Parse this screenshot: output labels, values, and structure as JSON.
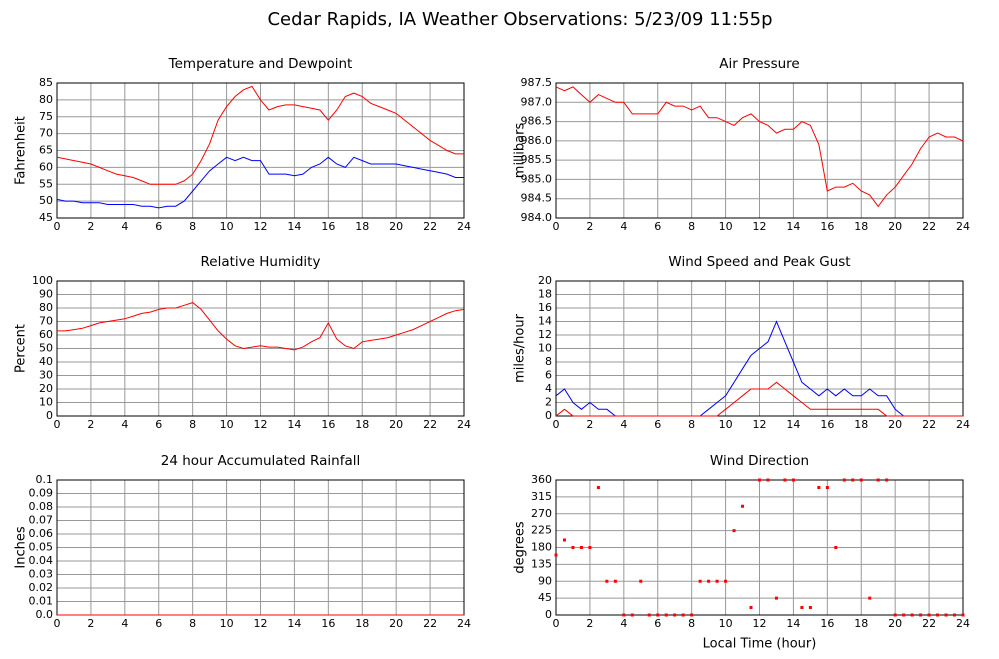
{
  "title": "Cedar Rapids, IA Weather Observations: 5/23/09 11:55p",
  "chart_data": [
    {
      "type": "line",
      "title": "Temperature and Dewpoint",
      "ylabel": "Fahrenheit",
      "x": [
        0,
        0.5,
        1,
        1.5,
        2,
        2.5,
        3,
        3.5,
        4,
        4.5,
        5,
        5.5,
        6,
        6.5,
        7,
        7.5,
        8,
        8.5,
        9,
        9.5,
        10,
        10.5,
        11,
        11.5,
        12,
        12.5,
        13,
        13.5,
        14,
        14.5,
        15,
        15.5,
        16,
        16.5,
        17,
        17.5,
        18,
        18.5,
        19,
        19.5,
        20,
        20.5,
        21,
        21.5,
        22,
        22.5,
        23,
        23.5,
        24
      ],
      "series": [
        {
          "color": "#ff0000",
          "values": [
            63,
            62.5,
            62,
            61.5,
            61,
            60,
            59,
            58,
            57.5,
            57,
            56,
            55,
            55,
            55,
            55,
            56,
            58,
            62,
            67,
            74,
            78,
            81,
            83,
            84,
            80,
            77,
            78,
            78.5,
            78.5,
            78,
            77.5,
            77,
            74,
            77,
            81,
            82,
            81,
            79,
            78,
            77,
            76,
            74,
            72,
            70,
            68,
            66.5,
            65,
            64,
            64
          ]
        },
        {
          "color": "#0000ff",
          "values": [
            50.5,
            50,
            50,
            49.5,
            49.5,
            49.5,
            49,
            49,
            49,
            49,
            48.5,
            48.5,
            48,
            48.5,
            48.5,
            50,
            53,
            56,
            59,
            61,
            63,
            62,
            63,
            62,
            62,
            58,
            58,
            58,
            57.5,
            58,
            60,
            61,
            63,
            61,
            60,
            63,
            62,
            61,
            61,
            61,
            61,
            60.5,
            60,
            59.5,
            59,
            58.5,
            58,
            57,
            57
          ]
        }
      ],
      "xlim": [
        0,
        24
      ],
      "xticks": [
        0,
        2,
        4,
        6,
        8,
        10,
        12,
        14,
        16,
        18,
        20,
        22,
        24
      ],
      "ylim": [
        45,
        85
      ],
      "yticks": [
        45,
        50,
        55,
        60,
        65,
        70,
        75,
        80,
        85
      ],
      "grid": true
    },
    {
      "type": "line",
      "title": "Air Pressure",
      "ylabel": "millibars",
      "x": [
        0,
        0.5,
        1,
        1.5,
        2,
        2.5,
        3,
        3.5,
        4,
        4.5,
        5,
        5.5,
        6,
        6.5,
        7,
        7.5,
        8,
        8.5,
        9,
        9.5,
        10,
        10.5,
        11,
        11.5,
        12,
        12.5,
        13,
        13.5,
        14,
        14.5,
        15,
        15.5,
        16,
        16.5,
        17,
        17.5,
        18,
        18.5,
        19,
        19.5,
        20,
        20.5,
        21,
        21.5,
        22,
        22.5,
        23,
        23.5,
        24
      ],
      "series": [
        {
          "color": "#ff0000",
          "values": [
            987.4,
            987.3,
            987.4,
            987.2,
            987.0,
            987.2,
            987.1,
            987.0,
            987.0,
            986.7,
            986.7,
            986.7,
            986.7,
            987.0,
            986.9,
            986.9,
            986.8,
            986.9,
            986.6,
            986.6,
            986.5,
            986.4,
            986.6,
            986.7,
            986.5,
            986.4,
            986.2,
            986.3,
            986.3,
            986.5,
            986.4,
            985.9,
            984.7,
            984.8,
            984.8,
            984.9,
            984.7,
            984.6,
            984.3,
            984.6,
            984.8,
            985.1,
            985.4,
            985.8,
            986.1,
            986.2,
            986.1,
            986.1,
            986.0
          ]
        }
      ],
      "xlim": [
        0,
        24
      ],
      "xticks": [
        0,
        2,
        4,
        6,
        8,
        10,
        12,
        14,
        16,
        18,
        20,
        22,
        24
      ],
      "ylim": [
        984,
        987.5
      ],
      "yticks": [
        {
          "value": 984,
          "label": "984.0"
        },
        984.5,
        {
          "value": 985,
          "label": "985.0"
        },
        985.5,
        {
          "value": 986,
          "label": "986.0"
        },
        986.5,
        {
          "value": 987,
          "label": "987.0"
        },
        987.5
      ],
      "grid": true
    },
    {
      "type": "line",
      "title": "Relative Humidity",
      "ylabel": "Percent",
      "x": [
        0,
        0.5,
        1,
        1.5,
        2,
        2.5,
        3,
        3.5,
        4,
        4.5,
        5,
        5.5,
        6,
        6.5,
        7,
        7.5,
        8,
        8.5,
        9,
        9.5,
        10,
        10.5,
        11,
        11.5,
        12,
        12.5,
        13,
        13.5,
        14,
        14.5,
        15,
        15.5,
        16,
        16.5,
        17,
        17.5,
        18,
        18.5,
        19,
        19.5,
        20,
        20.5,
        21,
        21.5,
        22,
        22.5,
        23,
        23.5,
        24
      ],
      "series": [
        {
          "color": "#ff0000",
          "values": [
            63,
            63,
            64,
            65,
            67,
            69,
            70,
            71,
            72,
            74,
            76,
            77,
            79,
            80,
            80,
            82,
            84,
            79,
            71,
            63,
            57,
            52,
            50,
            51,
            52,
            51,
            51,
            50,
            49,
            51,
            55,
            58,
            69,
            57,
            52,
            50,
            55,
            56,
            57,
            58,
            60,
            62,
            64,
            67,
            70,
            73,
            76,
            78,
            79
          ]
        }
      ],
      "xlim": [
        0,
        24
      ],
      "xticks": [
        0,
        2,
        4,
        6,
        8,
        10,
        12,
        14,
        16,
        18,
        20,
        22,
        24
      ],
      "ylim": [
        0,
        100
      ],
      "yticks": [
        0,
        10,
        20,
        30,
        40,
        50,
        60,
        70,
        80,
        90,
        100
      ],
      "grid": true
    },
    {
      "type": "line",
      "title": "Wind Speed and Peak Gust",
      "ylabel": "miles/hour",
      "x": [
        0,
        0.5,
        1,
        1.5,
        2,
        2.5,
        3,
        3.5,
        4,
        4.5,
        5,
        5.5,
        6,
        6.5,
        7,
        7.5,
        8,
        8.5,
        9,
        9.5,
        10,
        10.5,
        11,
        11.5,
        12,
        12.5,
        13,
        13.5,
        14,
        14.5,
        15,
        15.5,
        16,
        16.5,
        17,
        17.5,
        18,
        18.5,
        19,
        19.5,
        20,
        20.5,
        21,
        21.5,
        22,
        22.5,
        23,
        23.5,
        24
      ],
      "series": [
        {
          "color": "#0000ff",
          "values": [
            3,
            4,
            2,
            1,
            2,
            1,
            1,
            0,
            0,
            0,
            0,
            0,
            0,
            0,
            0,
            0,
            0,
            0,
            1,
            2,
            3,
            5,
            7,
            9,
            10,
            11,
            14,
            11,
            8,
            5,
            4,
            3,
            4,
            3,
            4,
            3,
            3,
            4,
            3,
            3,
            1,
            0,
            0,
            0,
            0,
            0,
            0,
            0,
            0
          ]
        },
        {
          "color": "#ff0000",
          "values": [
            0,
            1,
            0,
            0,
            0,
            0,
            0,
            0,
            0,
            0,
            0,
            0,
            0,
            0,
            0,
            0,
            0,
            0,
            0,
            0,
            1,
            2,
            3,
            4,
            4,
            4,
            5,
            4,
            3,
            2,
            1,
            1,
            1,
            1,
            1,
            1,
            1,
            1,
            1,
            0,
            0,
            0,
            0,
            0,
            0,
            0,
            0,
            0,
            0
          ]
        }
      ],
      "xlim": [
        0,
        24
      ],
      "xticks": [
        0,
        2,
        4,
        6,
        8,
        10,
        12,
        14,
        16,
        18,
        20,
        22,
        24
      ],
      "ylim": [
        0,
        20
      ],
      "yticks": [
        0,
        2,
        4,
        6,
        8,
        10,
        12,
        14,
        16,
        18,
        20
      ],
      "grid": true
    },
    {
      "type": "line",
      "title": "24 hour Accumulated Rainfall",
      "ylabel": "Inches",
      "x": [
        0,
        24
      ],
      "series": [
        {
          "color": "#ff0000",
          "values": [
            0,
            0
          ]
        }
      ],
      "xlim": [
        0,
        24
      ],
      "xticks": [
        0,
        2,
        4,
        6,
        8,
        10,
        12,
        14,
        16,
        18,
        20,
        22,
        24
      ],
      "ylim": [
        0,
        0.1
      ],
      "yticks": [
        {
          "value": 0,
          "label": "0.0"
        },
        0.01,
        0.02,
        0.03,
        0.04,
        0.05,
        0.06,
        0.07,
        0.08,
        0.09,
        0.1
      ],
      "grid": true
    },
    {
      "type": "scatter",
      "title": "Wind Direction",
      "ylabel": "degrees",
      "xlabel": "Local Time (hour)",
      "x": [
        0,
        0.5,
        1,
        1.5,
        2,
        2.5,
        3,
        3.5,
        4,
        4.5,
        5,
        5.5,
        6,
        6.5,
        7,
        7.5,
        8,
        8.5,
        9,
        9.5,
        10,
        10.5,
        11,
        11.5,
        12,
        12.5,
        13,
        13.5,
        14,
        14.5,
        15,
        15.5,
        16,
        16.5,
        17,
        17.5,
        18,
        18.5,
        19,
        19.5,
        20,
        20.5,
        21,
        21.5,
        22,
        22.5,
        23,
        23.5,
        24
      ],
      "series": [
        {
          "color": "#ff0000",
          "values": [
            160,
            200,
            180,
            180,
            180,
            340,
            90,
            90,
            0,
            0,
            90,
            0,
            0,
            0,
            0,
            0,
            0,
            90,
            90,
            90,
            90,
            225,
            290,
            20,
            360,
            360,
            45,
            360,
            360,
            20,
            20,
            340,
            340,
            180,
            360,
            360,
            360,
            45,
            360,
            360,
            0,
            0,
            0,
            0,
            0,
            0,
            0,
            0,
            0
          ]
        }
      ],
      "xlim": [
        0,
        24
      ],
      "xticks": [
        0,
        2,
        4,
        6,
        8,
        10,
        12,
        14,
        16,
        18,
        20,
        22,
        24
      ],
      "ylim": [
        0,
        360
      ],
      "yticks": [
        0,
        45,
        90,
        135,
        180,
        225,
        270,
        315,
        360
      ],
      "grid": true
    }
  ]
}
